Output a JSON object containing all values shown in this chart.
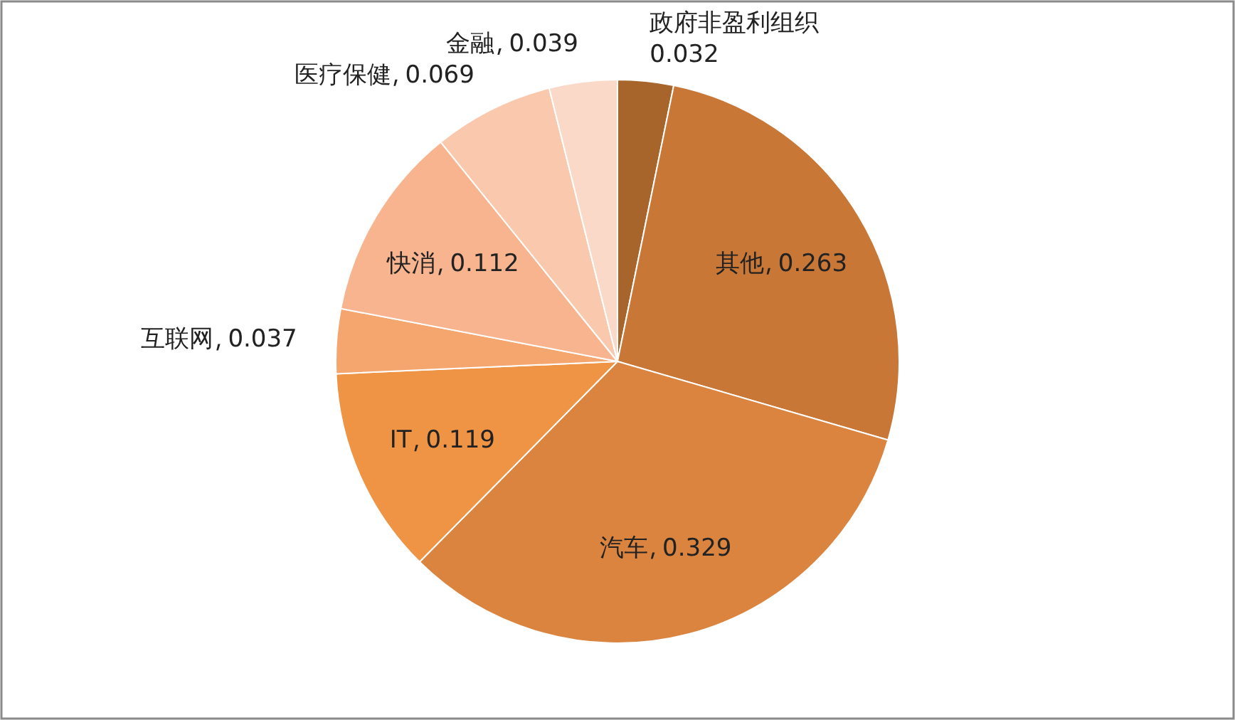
{
  "chart_data": {
    "type": "pie",
    "data_labels": true,
    "categories": [
      "政府非盈利组织",
      "其他",
      "汽车",
      "IT",
      "互联网",
      "快消",
      "医疗保健",
      "金融"
    ],
    "values": [
      0.032,
      0.263,
      0.329,
      0.119,
      0.037,
      0.112,
      0.069,
      0.039
    ],
    "colors": [
      "#a8652b",
      "#c87737",
      "#da8440",
      "#ef9345",
      "#f5a66f",
      "#f7b48f",
      "#f9c8ad",
      "#fad9c8"
    ]
  }
}
